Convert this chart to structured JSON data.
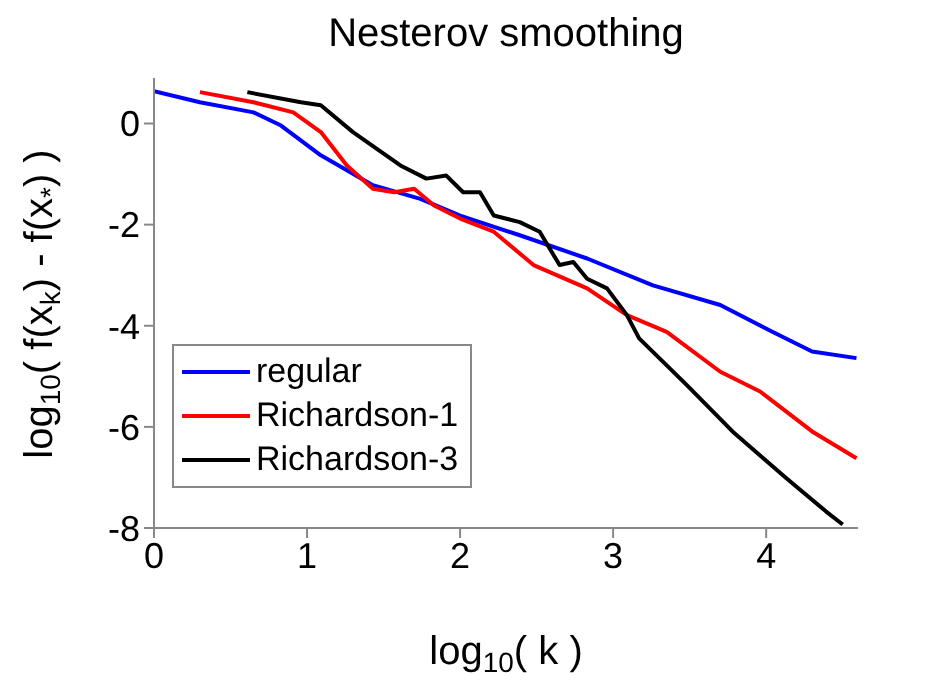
{
  "chart_data": {
    "type": "line",
    "title": "Nesterov smoothing",
    "xlabel": "log$_{10}$( k )",
    "ylabel": "log$_{10}$( f(x$_{k}$) - f(x$_{*}$) )",
    "xlim": [
      0,
      4.6
    ],
    "xticks": [
      0,
      1,
      2,
      3,
      4
    ],
    "ylim": [
      -8,
      0.9
    ],
    "yticks": [
      -8,
      -6,
      -4,
      -2,
      0
    ],
    "grid": false,
    "legend": "bottom left",
    "marker": "none",
    "line_style": "solid",
    "series": [
      {
        "name": "regular",
        "color": "#0000ff",
        "x": [
          0,
          0.3,
          0.65,
          0.83,
          1.09,
          1.43,
          1.74,
          2.0,
          2.39,
          2.83,
          3.26,
          3.7,
          4.04,
          4.3,
          4.59
        ],
        "values": [
          0.64,
          0.42,
          0.22,
          -0.04,
          -0.63,
          -1.22,
          -1.49,
          -1.82,
          -2.21,
          -2.67,
          -3.2,
          -3.59,
          -4.12,
          -4.51,
          -4.64
        ]
      },
      {
        "name": "Richardson-1",
        "color": "#ff0000",
        "x": [
          0.3,
          0.65,
          0.91,
          1.09,
          1.26,
          1.43,
          1.57,
          1.7,
          1.83,
          2.0,
          2.22,
          2.48,
          2.83,
          3.09,
          3.35,
          3.7,
          3.96,
          4.3,
          4.59
        ],
        "values": [
          0.62,
          0.42,
          0.22,
          -0.17,
          -0.83,
          -1.29,
          -1.36,
          -1.29,
          -1.62,
          -1.88,
          -2.14,
          -2.8,
          -3.26,
          -3.79,
          -4.12,
          -4.91,
          -5.3,
          -6.09,
          -6.62
        ]
      },
      {
        "name": "Richardson-3",
        "color": "#000000",
        "x": [
          0.61,
          0.96,
          1.09,
          1.3,
          1.61,
          1.78,
          1.91,
          2.02,
          2.13,
          2.22,
          2.39,
          2.52,
          2.65,
          2.74,
          2.83,
          2.96,
          3.09,
          3.17,
          3.48,
          3.78,
          4.13,
          4.39,
          4.5
        ],
        "values": [
          0.62,
          0.42,
          0.36,
          -0.17,
          -0.83,
          -1.09,
          -1.03,
          -1.36,
          -1.36,
          -1.82,
          -1.95,
          -2.14,
          -2.8,
          -2.74,
          -3.07,
          -3.26,
          -3.79,
          -4.25,
          -5.17,
          -6.09,
          -7.01,
          -7.67,
          -7.93
        ]
      }
    ]
  }
}
